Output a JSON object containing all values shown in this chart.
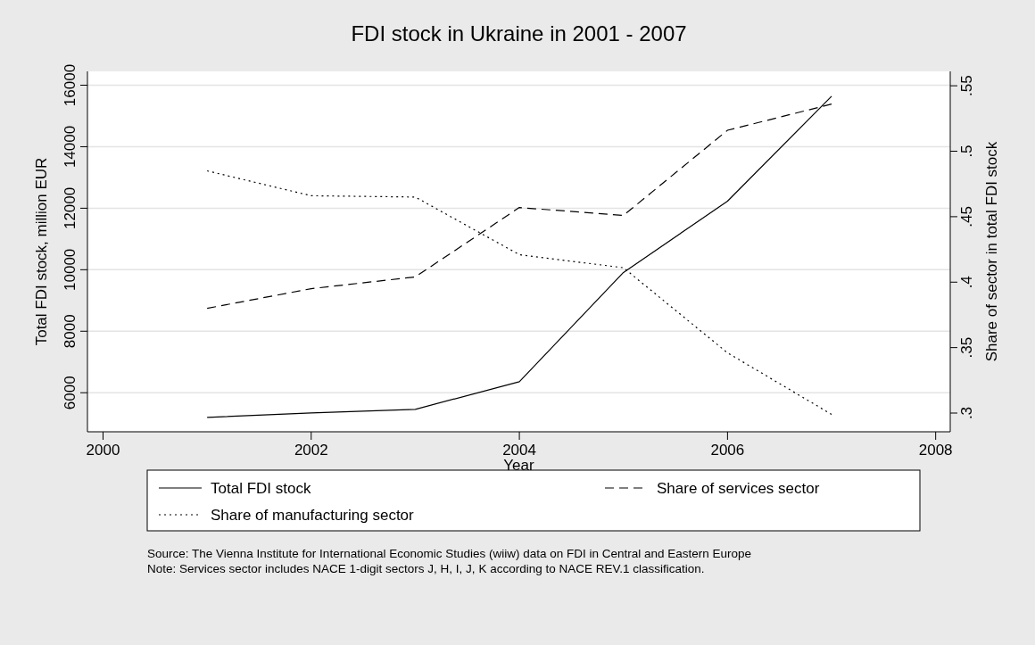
{
  "chart_data": {
    "type": "line",
    "title": "FDI stock in Ukraine in 2001 - 2007",
    "xlabel": "Year",
    "ylabel": "Total FDI stock, million EUR",
    "y2label": "Share of sector in total FDI stock",
    "x": [
      2001,
      2002,
      2003,
      2004,
      2005,
      2006,
      2007
    ],
    "series": [
      {
        "name": "Total FDI stock",
        "color": "#000000",
        "line_style": "solid",
        "values": [
          5200,
          5340,
          5460,
          6360,
          9910,
          12230,
          15640
        ]
      },
      {
        "name": "Share of services sector",
        "color": "#000000",
        "line_style": "dashed",
        "axis": "y2",
        "values": [
          0.38,
          0.395,
          0.404,
          0.457,
          0.451,
          0.516,
          0.536
        ]
      },
      {
        "name": "Share of manufacturing sector",
        "color": "#000000",
        "line_style": "dotted",
        "axis": "y2",
        "values": [
          0.485,
          0.466,
          0.465,
          0.421,
          0.411,
          0.346,
          0.299
        ]
      }
    ],
    "xlim": [
      1999.85,
      2008.14
    ],
    "xticks": [
      2000,
      2002,
      2004,
      2006,
      2008
    ],
    "ylim": [
      4730,
      16450
    ],
    "yticks": [
      6000,
      8000,
      10000,
      12000,
      14000,
      16000
    ],
    "y2lim": [
      0.2857,
      0.561
    ],
    "y2ticks": [
      {
        "value": 0.3,
        "label": ".3"
      },
      {
        "value": 0.35,
        "label": ".35"
      },
      {
        "value": 0.4,
        "label": ".4"
      },
      {
        "value": 0.45,
        "label": ".45"
      },
      {
        "value": 0.5,
        "label": ".5"
      },
      {
        "value": 0.55,
        "label": ".55"
      }
    ],
    "grid": "y",
    "legend": "bottom",
    "annotations": [
      "Source: The Vienna Institute for International Economic Studies (wiiw) data on FDI in Central and Eastern Europe",
      "Note: Services sector includes NACE 1-digit sectors J, H, I, J, K according to NACE REV.1 classification."
    ]
  }
}
